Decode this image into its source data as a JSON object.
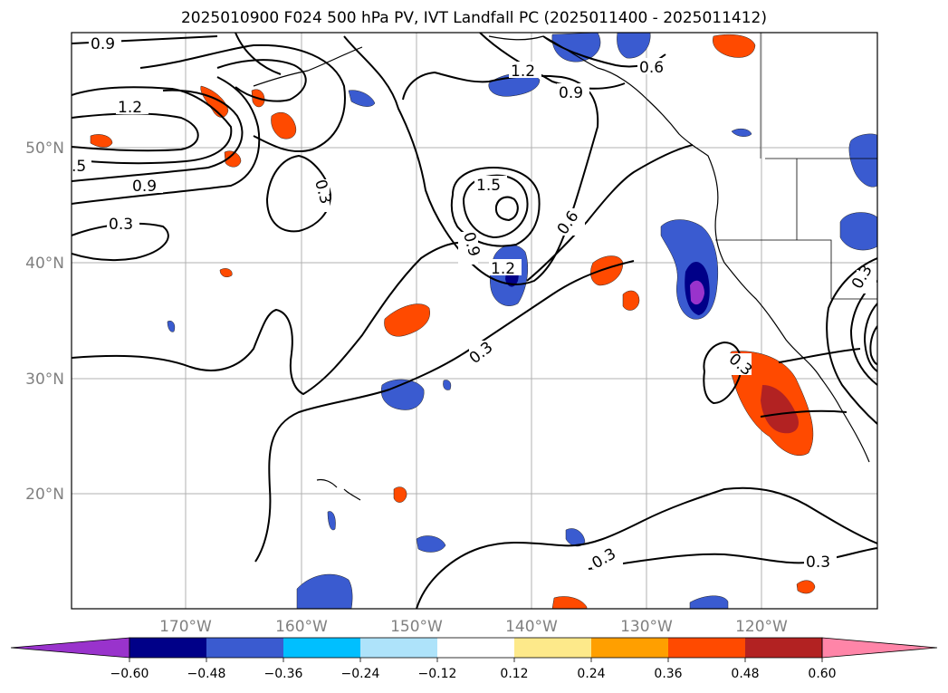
{
  "title": "2025010900 F024 500 hPa PV, IVT Landfall PC (2025011400 - 2025011412)",
  "map": {
    "lon_ticks": [
      "170°W",
      "160°W",
      "150°W",
      "140°W",
      "130°W",
      "120°W"
    ],
    "lat_ticks": [
      "50°N",
      "40°N",
      "30°N",
      "20°N"
    ],
    "contour_labels": [
      "0.9",
      "1.2",
      ".5",
      "0.9",
      "0.3",
      "1.2",
      "0.9",
      "0.6",
      "1.5",
      "0.3",
      "0.9",
      "1.2",
      "0.6",
      "0.3",
      "0.3",
      "0.3",
      "0.3",
      "0.3"
    ]
  },
  "colorbar": {
    "ticks": [
      "−0.60",
      "−0.48",
      "−0.36",
      "−0.24",
      "−0.12",
      "0.12",
      "0.24",
      "0.36",
      "0.48",
      "0.60"
    ],
    "colors": [
      "#9933cc",
      "#000088",
      "#3a5bd0",
      "#00bfff",
      "#aee3fa",
      "#ffffff",
      "#fde98a",
      "#ff9f00",
      "#ff4a00",
      "#b22222",
      "#ff85a8"
    ]
  }
}
